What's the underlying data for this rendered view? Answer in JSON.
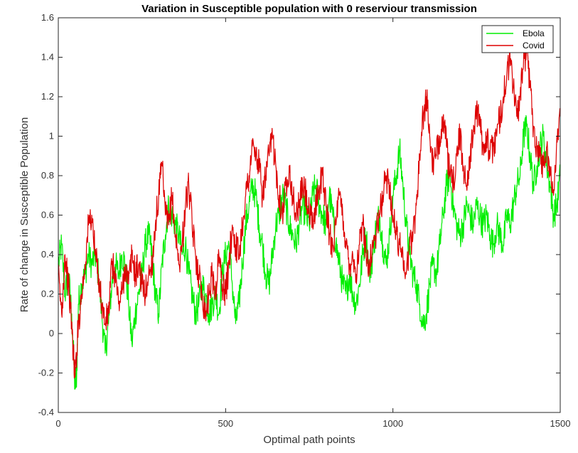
{
  "chart_data": {
    "type": "line",
    "title": "Variation in Susceptible population with 0 reserviour transmission",
    "xlabel": "Optimal path points",
    "ylabel": "Rate of change in Susceptible Population",
    "xlim": [
      0,
      1500
    ],
    "ylim": [
      -0.4,
      1.6
    ],
    "x_ticks": [
      0,
      500,
      1000,
      1500
    ],
    "x_tick_labels": [
      "0",
      "500",
      "1000",
      "1500"
    ],
    "y_ticks": [
      -0.4,
      -0.2,
      0,
      0.2,
      0.4,
      0.6,
      0.8,
      1.0,
      1.2,
      1.4,
      1.6
    ],
    "y_tick_labels": [
      "-0.4",
      "-0.2",
      "0",
      "0.2",
      "0.4",
      "0.6",
      "0.8",
      "1",
      "1.2",
      "1.4",
      "1.6"
    ],
    "grid": false,
    "legend_position": "top-right",
    "series": [
      {
        "name": "Ebola",
        "color": "#00ee00",
        "points": [
          [
            0,
            0.35
          ],
          [
            10,
            0.45
          ],
          [
            20,
            0.2
          ],
          [
            30,
            0.3
          ],
          [
            40,
            0.1
          ],
          [
            50,
            -0.28
          ],
          [
            55,
            -0.2
          ],
          [
            60,
            0.15
          ],
          [
            70,
            0.25
          ],
          [
            80,
            0.3
          ],
          [
            90,
            0.4
          ],
          [
            100,
            0.35
          ],
          [
            110,
            0.4
          ],
          [
            120,
            0.3
          ],
          [
            130,
            0.1
          ],
          [
            140,
            -0.1
          ],
          [
            150,
            0.05
          ],
          [
            160,
            0.25
          ],
          [
            170,
            0.35
          ],
          [
            180,
            0.3
          ],
          [
            190,
            0.4
          ],
          [
            200,
            0.35
          ],
          [
            210,
            0.15
          ],
          [
            220,
            -0.05
          ],
          [
            230,
            0.1
          ],
          [
            240,
            0.2
          ],
          [
            250,
            0.3
          ],
          [
            260,
            0.45
          ],
          [
            270,
            0.5
          ],
          [
            280,
            0.4
          ],
          [
            290,
            0.2
          ],
          [
            300,
            0.1
          ],
          [
            310,
            0.35
          ],
          [
            320,
            0.5
          ],
          [
            330,
            0.65
          ],
          [
            340,
            0.6
          ],
          [
            350,
            0.55
          ],
          [
            360,
            0.5
          ],
          [
            370,
            0.4
          ],
          [
            380,
            0.45
          ],
          [
            390,
            0.3
          ],
          [
            400,
            0.2
          ],
          [
            410,
            0.1
          ],
          [
            420,
            0.15
          ],
          [
            430,
            0.25
          ],
          [
            440,
            0.2
          ],
          [
            450,
            0.1
          ],
          [
            460,
            0.15
          ],
          [
            470,
            0.2
          ],
          [
            480,
            0.1
          ],
          [
            490,
            0.3
          ],
          [
            500,
            0.4
          ],
          [
            510,
            0.45
          ],
          [
            520,
            0.25
          ],
          [
            530,
            0.05
          ],
          [
            540,
            0.15
          ],
          [
            550,
            0.35
          ],
          [
            560,
            0.55
          ],
          [
            570,
            0.65
          ],
          [
            580,
            0.75
          ],
          [
            590,
            0.7
          ],
          [
            600,
            0.55
          ],
          [
            610,
            0.45
          ],
          [
            620,
            0.3
          ],
          [
            630,
            0.25
          ],
          [
            640,
            0.4
          ],
          [
            650,
            0.55
          ],
          [
            660,
            0.6
          ],
          [
            670,
            0.7
          ],
          [
            680,
            0.65
          ],
          [
            690,
            0.55
          ],
          [
            700,
            0.5
          ],
          [
            710,
            0.45
          ],
          [
            720,
            0.55
          ],
          [
            730,
            0.65
          ],
          [
            740,
            0.6
          ],
          [
            750,
            0.55
          ],
          [
            760,
            0.7
          ],
          [
            770,
            0.75
          ],
          [
            780,
            0.65
          ],
          [
            790,
            0.6
          ],
          [
            800,
            0.55
          ],
          [
            810,
            0.7
          ],
          [
            820,
            0.6
          ],
          [
            830,
            0.45
          ],
          [
            840,
            0.35
          ],
          [
            850,
            0.25
          ],
          [
            860,
            0.2
          ],
          [
            870,
            0.3
          ],
          [
            880,
            0.2
          ],
          [
            890,
            0.15
          ],
          [
            900,
            0.25
          ],
          [
            910,
            0.4
          ],
          [
            920,
            0.5
          ],
          [
            930,
            0.3
          ],
          [
            940,
            0.4
          ],
          [
            950,
            0.55
          ],
          [
            960,
            0.6
          ],
          [
            970,
            0.45
          ],
          [
            980,
            0.35
          ],
          [
            990,
            0.5
          ],
          [
            1000,
            0.7
          ],
          [
            1010,
            0.8
          ],
          [
            1020,
            0.93
          ],
          [
            1030,
            0.75
          ],
          [
            1040,
            0.55
          ],
          [
            1050,
            0.4
          ],
          [
            1060,
            0.3
          ],
          [
            1070,
            0.25
          ],
          [
            1080,
            0.15
          ],
          [
            1090,
            0.05
          ],
          [
            1100,
            0.1
          ],
          [
            1110,
            0.25
          ],
          [
            1120,
            0.35
          ],
          [
            1130,
            0.3
          ],
          [
            1140,
            0.45
          ],
          [
            1150,
            0.6
          ],
          [
            1160,
            0.75
          ],
          [
            1170,
            0.8
          ],
          [
            1180,
            0.65
          ],
          [
            1190,
            0.55
          ],
          [
            1200,
            0.5
          ],
          [
            1210,
            0.55
          ],
          [
            1220,
            0.65
          ],
          [
            1230,
            0.6
          ],
          [
            1240,
            0.55
          ],
          [
            1250,
            0.65
          ],
          [
            1260,
            0.6
          ],
          [
            1270,
            0.55
          ],
          [
            1280,
            0.6
          ],
          [
            1290,
            0.5
          ],
          [
            1300,
            0.45
          ],
          [
            1310,
            0.55
          ],
          [
            1320,
            0.5
          ],
          [
            1330,
            0.45
          ],
          [
            1340,
            0.6
          ],
          [
            1350,
            0.55
          ],
          [
            1360,
            0.65
          ],
          [
            1370,
            0.75
          ],
          [
            1380,
            0.8
          ],
          [
            1390,
            1.0
          ],
          [
            1400,
            1.05
          ],
          [
            1410,
            0.9
          ],
          [
            1420,
            0.75
          ],
          [
            1430,
            0.85
          ],
          [
            1440,
            0.95
          ],
          [
            1450,
            1.0
          ],
          [
            1460,
            0.85
          ],
          [
            1470,
            0.75
          ],
          [
            1480,
            0.6
          ],
          [
            1490,
            0.65
          ],
          [
            1500,
            0.8
          ]
        ]
      },
      {
        "name": "Covid",
        "color": "#dd0000",
        "points": [
          [
            0,
            0.3
          ],
          [
            10,
            0.1
          ],
          [
            20,
            0.4
          ],
          [
            30,
            0.25
          ],
          [
            40,
            0.05
          ],
          [
            45,
            -0.1
          ],
          [
            50,
            -0.22
          ],
          [
            60,
            0.05
          ],
          [
            70,
            0.2
          ],
          [
            80,
            0.35
          ],
          [
            90,
            0.55
          ],
          [
            100,
            0.6
          ],
          [
            110,
            0.4
          ],
          [
            120,
            0.3
          ],
          [
            130,
            0.15
          ],
          [
            140,
            0.05
          ],
          [
            150,
            0.1
          ],
          [
            160,
            0.35
          ],
          [
            170,
            0.3
          ],
          [
            180,
            0.15
          ],
          [
            190,
            0.2
          ],
          [
            200,
            0.35
          ],
          [
            210,
            0.25
          ],
          [
            220,
            0.4
          ],
          [
            230,
            0.3
          ],
          [
            240,
            0.35
          ],
          [
            250,
            0.25
          ],
          [
            260,
            0.2
          ],
          [
            270,
            0.3
          ],
          [
            280,
            0.35
          ],
          [
            290,
            0.55
          ],
          [
            300,
            0.7
          ],
          [
            310,
            0.85
          ],
          [
            320,
            0.6
          ],
          [
            330,
            0.55
          ],
          [
            340,
            0.7
          ],
          [
            350,
            0.5
          ],
          [
            360,
            0.35
          ],
          [
            370,
            0.45
          ],
          [
            380,
            0.65
          ],
          [
            390,
            0.75
          ],
          [
            400,
            0.55
          ],
          [
            410,
            0.4
          ],
          [
            420,
            0.3
          ],
          [
            430,
            0.2
          ],
          [
            440,
            0.1
          ],
          [
            450,
            0.2
          ],
          [
            460,
            0.3
          ],
          [
            470,
            0.2
          ],
          [
            480,
            0.4
          ],
          [
            490,
            0.25
          ],
          [
            500,
            0.2
          ],
          [
            510,
            0.35
          ],
          [
            520,
            0.55
          ],
          [
            530,
            0.45
          ],
          [
            540,
            0.4
          ],
          [
            550,
            0.55
          ],
          [
            560,
            0.7
          ],
          [
            570,
            0.8
          ],
          [
            580,
            0.95
          ],
          [
            590,
            0.9
          ],
          [
            600,
            0.85
          ],
          [
            610,
            0.7
          ],
          [
            620,
            0.8
          ],
          [
            630,
            0.9
          ],
          [
            640,
            1.0
          ],
          [
            650,
            0.85
          ],
          [
            660,
            0.7
          ],
          [
            670,
            0.6
          ],
          [
            680,
            0.75
          ],
          [
            690,
            0.85
          ],
          [
            700,
            0.7
          ],
          [
            710,
            0.6
          ],
          [
            720,
            0.65
          ],
          [
            730,
            0.75
          ],
          [
            740,
            0.7
          ],
          [
            750,
            0.6
          ],
          [
            760,
            0.55
          ],
          [
            770,
            0.65
          ],
          [
            780,
            0.75
          ],
          [
            790,
            0.8
          ],
          [
            800,
            0.65
          ],
          [
            810,
            0.5
          ],
          [
            820,
            0.45
          ],
          [
            830,
            0.55
          ],
          [
            840,
            0.7
          ],
          [
            850,
            0.6
          ],
          [
            860,
            0.45
          ],
          [
            870,
            0.35
          ],
          [
            880,
            0.4
          ],
          [
            890,
            0.3
          ],
          [
            900,
            0.45
          ],
          [
            910,
            0.55
          ],
          [
            920,
            0.4
          ],
          [
            930,
            0.35
          ],
          [
            940,
            0.45
          ],
          [
            950,
            0.5
          ],
          [
            960,
            0.6
          ],
          [
            970,
            0.7
          ],
          [
            980,
            0.8
          ],
          [
            990,
            0.75
          ],
          [
            1000,
            0.6
          ],
          [
            1010,
            0.5
          ],
          [
            1020,
            0.45
          ],
          [
            1030,
            0.4
          ],
          [
            1040,
            0.3
          ],
          [
            1050,
            0.45
          ],
          [
            1060,
            0.5
          ],
          [
            1070,
            0.65
          ],
          [
            1080,
            0.9
          ],
          [
            1090,
            1.1
          ],
          [
            1100,
            1.2
          ],
          [
            1110,
            1.0
          ],
          [
            1120,
            0.85
          ],
          [
            1130,
            0.9
          ],
          [
            1140,
            1.0
          ],
          [
            1150,
            1.1
          ],
          [
            1160,
            0.95
          ],
          [
            1170,
            0.8
          ],
          [
            1180,
            0.75
          ],
          [
            1190,
            0.9
          ],
          [
            1200,
            1.0
          ],
          [
            1210,
            0.85
          ],
          [
            1220,
            0.75
          ],
          [
            1230,
            0.9
          ],
          [
            1240,
            1.0
          ],
          [
            1250,
            1.15
          ],
          [
            1260,
            1.05
          ],
          [
            1270,
            0.95
          ],
          [
            1280,
            1.0
          ],
          [
            1290,
            0.9
          ],
          [
            1300,
            0.95
          ],
          [
            1310,
            1.0
          ],
          [
            1320,
            1.1
          ],
          [
            1330,
            1.2
          ],
          [
            1340,
            1.3
          ],
          [
            1350,
            1.4
          ],
          [
            1360,
            1.25
          ],
          [
            1370,
            1.1
          ],
          [
            1380,
            1.2
          ],
          [
            1390,
            1.35
          ],
          [
            1400,
            1.45
          ],
          [
            1410,
            1.25
          ],
          [
            1420,
            1.05
          ],
          [
            1430,
            0.95
          ],
          [
            1440,
            0.9
          ],
          [
            1450,
            0.85
          ],
          [
            1460,
            0.95
          ],
          [
            1470,
            0.8
          ],
          [
            1480,
            0.7
          ],
          [
            1490,
            1.0
          ],
          [
            1500,
            1.1
          ]
        ]
      }
    ]
  }
}
